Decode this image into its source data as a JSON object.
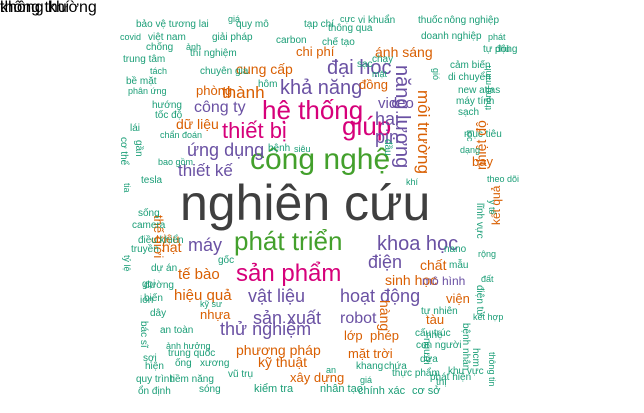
{
  "colors": {
    "purple": "#6a51a3",
    "gray": "#3f3f3f",
    "green": "#43a02c",
    "pink": "#d6007a",
    "orange": "#d95f02",
    "teal": "#1b9e77"
  },
  "words": [
    {
      "text": "nghiên cứu",
      "color": "gray"
    },
    {
      "text": "công nghệ",
      "color": "green"
    },
    {
      "text": "phát triển",
      "color": "green"
    },
    {
      "text": "sản phẩm",
      "color": "pink"
    },
    {
      "text": "hệ thống",
      "color": "pink"
    },
    {
      "text": "thiết bị",
      "color": "pink"
    },
    {
      "text": "giúp",
      "color": "pink"
    },
    {
      "text": "khả năng",
      "color": "purple"
    },
    {
      "text": "đại học",
      "color": "purple"
    },
    {
      "text": "năng lượng",
      "color": "purple"
    },
    {
      "text": "khoa học",
      "color": "purple"
    },
    {
      "text": "vật liệu",
      "color": "purple"
    },
    {
      "text": "sản xuất",
      "color": "purple"
    },
    {
      "text": "hoạt động",
      "color": "purple"
    },
    {
      "text": "thử nghiệm",
      "color": "purple"
    },
    {
      "text": "điện",
      "color": "purple"
    },
    {
      "text": "máy",
      "color": "purple"
    },
    {
      "text": "ứng dụng",
      "color": "purple"
    },
    {
      "text": "thiết kế",
      "color": "purple"
    },
    {
      "text": "robot",
      "color": "purple"
    },
    {
      "text": "pin",
      "color": "purple"
    },
    {
      "text": "hai",
      "color": "purple"
    },
    {
      "text": "video",
      "color": "purple"
    },
    {
      "text": "công ty",
      "color": "purple"
    },
    {
      "text": "thành",
      "color": "orange"
    },
    {
      "text": "cung cấp",
      "color": "orange"
    },
    {
      "text": "dữ liệu",
      "color": "orange"
    },
    {
      "text": "môi trường",
      "color": "orange"
    },
    {
      "text": "nhiệt độ",
      "color": "orange"
    },
    {
      "text": "hiệu quả",
      "color": "orange"
    },
    {
      "text": "tế bào",
      "color": "orange"
    },
    {
      "text": "hạt",
      "color": "orange"
    },
    {
      "text": "sinh học",
      "color": "orange"
    },
    {
      "text": "chất",
      "color": "orange"
    },
    {
      "text": "phương pháp",
      "color": "orange"
    },
    {
      "text": "kỹ thuật",
      "color": "orange"
    },
    {
      "text": "mặt trời",
      "color": "orange"
    },
    {
      "text": "xây dựng",
      "color": "orange"
    },
    {
      "text": "hàng",
      "color": "orange"
    },
    {
      "text": "lớp",
      "color": "orange"
    },
    {
      "text": "phép",
      "color": "orange"
    },
    {
      "text": "nhựa",
      "color": "orange"
    },
    {
      "text": "ánh sáng",
      "color": "orange"
    },
    {
      "text": "chi phí",
      "color": "orange"
    },
    {
      "text": "phòng",
      "color": "orange"
    },
    {
      "text": "đồng",
      "color": "orange"
    },
    {
      "text": "viện",
      "color": "orange"
    },
    {
      "text": "tàu",
      "color": "orange"
    },
    {
      "text": "bay",
      "color": "orange"
    },
    {
      "text": "thế giới",
      "color": "orange"
    },
    {
      "text": "triệu",
      "color": "orange"
    },
    {
      "text": "mô hình",
      "color": "purple"
    },
    {
      "text": "kết quả",
      "color": "orange"
    },
    {
      "text": "bảo vệ tương lai",
      "color": "teal"
    },
    {
      "text": "giá",
      "color": "teal"
    },
    {
      "text": "quy mô",
      "color": "teal"
    },
    {
      "text": "tạp chí",
      "color": "teal"
    },
    {
      "text": "cực",
      "color": "teal"
    },
    {
      "text": "vi khuẩn",
      "color": "teal"
    },
    {
      "text": "thuốc",
      "color": "teal"
    },
    {
      "text": "nông nghiệp",
      "color": "teal"
    },
    {
      "text": "covid",
      "color": "teal"
    },
    {
      "text": "việt nam",
      "color": "teal"
    },
    {
      "text": "chống",
      "color": "teal"
    },
    {
      "text": "ảnh",
      "color": "teal"
    },
    {
      "text": "giải pháp",
      "color": "teal"
    },
    {
      "text": "thí nghiệm",
      "color": "teal"
    },
    {
      "text": "carbon",
      "color": "teal"
    },
    {
      "text": "chế tạo",
      "color": "teal"
    },
    {
      "text": "thông qua",
      "color": "teal"
    },
    {
      "text": "doanh nghiệp",
      "color": "teal"
    },
    {
      "text": "phát",
      "color": "teal"
    },
    {
      "text": "tự động",
      "color": "teal"
    },
    {
      "text": "phủ",
      "color": "teal"
    },
    {
      "text": "trung tâm",
      "color": "teal"
    },
    {
      "text": "tách",
      "color": "teal"
    },
    {
      "text": "bề mặt",
      "color": "teal"
    },
    {
      "text": "chuyên gia",
      "color": "teal"
    },
    {
      "text": "hôm",
      "color": "teal"
    },
    {
      "text": "sạc",
      "color": "teal"
    },
    {
      "text": "chạy",
      "color": "teal"
    },
    {
      "text": "cảm biến",
      "color": "teal"
    },
    {
      "text": "mặt",
      "color": "teal"
    },
    {
      "text": "di chuyển",
      "color": "teal"
    },
    {
      "text": "phân ứng",
      "color": "teal"
    },
    {
      "text": "new atlas",
      "color": "teal"
    },
    {
      "text": "gió",
      "color": "teal"
    },
    {
      "text": "máy tính",
      "color": "teal"
    },
    {
      "text": "hướng",
      "color": "teal"
    },
    {
      "text": "sạch",
      "color": "teal"
    },
    {
      "text": "tốc độ",
      "color": "teal"
    },
    {
      "text": "thông minh",
      "color": "teal"
    },
    {
      "text": "lọc",
      "color": "teal"
    },
    {
      "text": "mục tiêu",
      "color": "teal"
    },
    {
      "text": "dạng",
      "color": "teal"
    },
    {
      "text": "chẩn đoán",
      "color": "teal"
    },
    {
      "text": "lái",
      "color": "teal"
    },
    {
      "text": "cơ thể",
      "color": "teal"
    },
    {
      "text": "bệnh",
      "color": "teal"
    },
    {
      "text": "siêu",
      "color": "teal"
    },
    {
      "text": "gần",
      "color": "teal"
    },
    {
      "text": "đầu",
      "color": "teal"
    },
    {
      "text": "bao gồm",
      "color": "teal"
    },
    {
      "text": "tesla",
      "color": "teal"
    },
    {
      "text": "khí",
      "color": "teal"
    },
    {
      "text": "tia",
      "color": "teal"
    },
    {
      "text": "theo dõi",
      "color": "teal"
    },
    {
      "text": "sống",
      "color": "teal"
    },
    {
      "text": "y tế",
      "color": "teal"
    },
    {
      "text": "lĩnh vực",
      "color": "teal"
    },
    {
      "text": "camera",
      "color": "teal"
    },
    {
      "text": "điều khiển",
      "color": "teal"
    },
    {
      "text": "truyền",
      "color": "teal"
    },
    {
      "text": "rộng",
      "color": "teal"
    },
    {
      "text": "gốc",
      "color": "teal"
    },
    {
      "text": "tỷ lệ",
      "color": "teal"
    },
    {
      "text": "dự án",
      "color": "teal"
    },
    {
      "text": "gọi",
      "color": "teal"
    },
    {
      "text": "nano",
      "color": "teal"
    },
    {
      "text": "mẫu",
      "color": "teal"
    },
    {
      "text": "đất",
      "color": "teal"
    },
    {
      "text": "đường",
      "color": "teal"
    },
    {
      "text": "ion",
      "color": "teal"
    },
    {
      "text": "biến",
      "color": "teal"
    },
    {
      "text": "kỹ sư",
      "color": "teal"
    },
    {
      "text": "dây",
      "color": "teal"
    },
    {
      "text": "điện tử",
      "color": "teal"
    },
    {
      "text": "kết hợp",
      "color": "teal"
    },
    {
      "text": "tự nhiên",
      "color": "teal"
    },
    {
      "text": "nhẹ",
      "color": "teal"
    },
    {
      "text": "bác sĩ",
      "color": "teal"
    },
    {
      "text": "an toàn",
      "color": "teal"
    },
    {
      "text": "ảnh hưởng",
      "color": "teal"
    },
    {
      "text": "trung quốc",
      "color": "teal"
    },
    {
      "text": "người",
      "color": "teal"
    },
    {
      "text": "bệnh nhân",
      "color": "teal"
    },
    {
      "text": "cấu trúc",
      "color": "teal"
    },
    {
      "text": "con người",
      "color": "teal"
    },
    {
      "text": "sợi",
      "color": "teal"
    },
    {
      "text": "hiện",
      "color": "teal"
    },
    {
      "text": "ống",
      "color": "teal"
    },
    {
      "text": "xương",
      "color": "teal"
    },
    {
      "text": "an",
      "color": "teal"
    },
    {
      "text": "khang",
      "color": "teal"
    },
    {
      "text": "chứa",
      "color": "teal"
    },
    {
      "text": "dựa",
      "color": "teal"
    },
    {
      "text": "hcm",
      "color": "teal"
    },
    {
      "text": "thông tin",
      "color": "teal"
    },
    {
      "text": "quy trình",
      "color": "teal"
    },
    {
      "text": "tiềm năng",
      "color": "teal"
    },
    {
      "text": "vũ trụ",
      "color": "teal"
    },
    {
      "text": "thực phẩm",
      "color": "teal"
    },
    {
      "text": "phát hiện",
      "color": "teal"
    },
    {
      "text": "khu vực",
      "color": "teal"
    },
    {
      "text": "thị",
      "color": "teal"
    },
    {
      "text": "giá",
      "color": "teal"
    },
    {
      "text": "ổn định",
      "color": "teal"
    },
    {
      "text": "sóng",
      "color": "teal"
    },
    {
      "text": "kiểm tra",
      "color": "teal"
    },
    {
      "text": "nhân tạo",
      "color": "teal"
    },
    {
      "text": "chính xác",
      "color": "teal"
    },
    {
      "text": "cơ sở",
      "color": "teal"
    },
    {
      "text": "không khí",
      "color": "teal"
    },
    {
      "text": "thông thường",
      "color": "teal"
    }
  ]
}
